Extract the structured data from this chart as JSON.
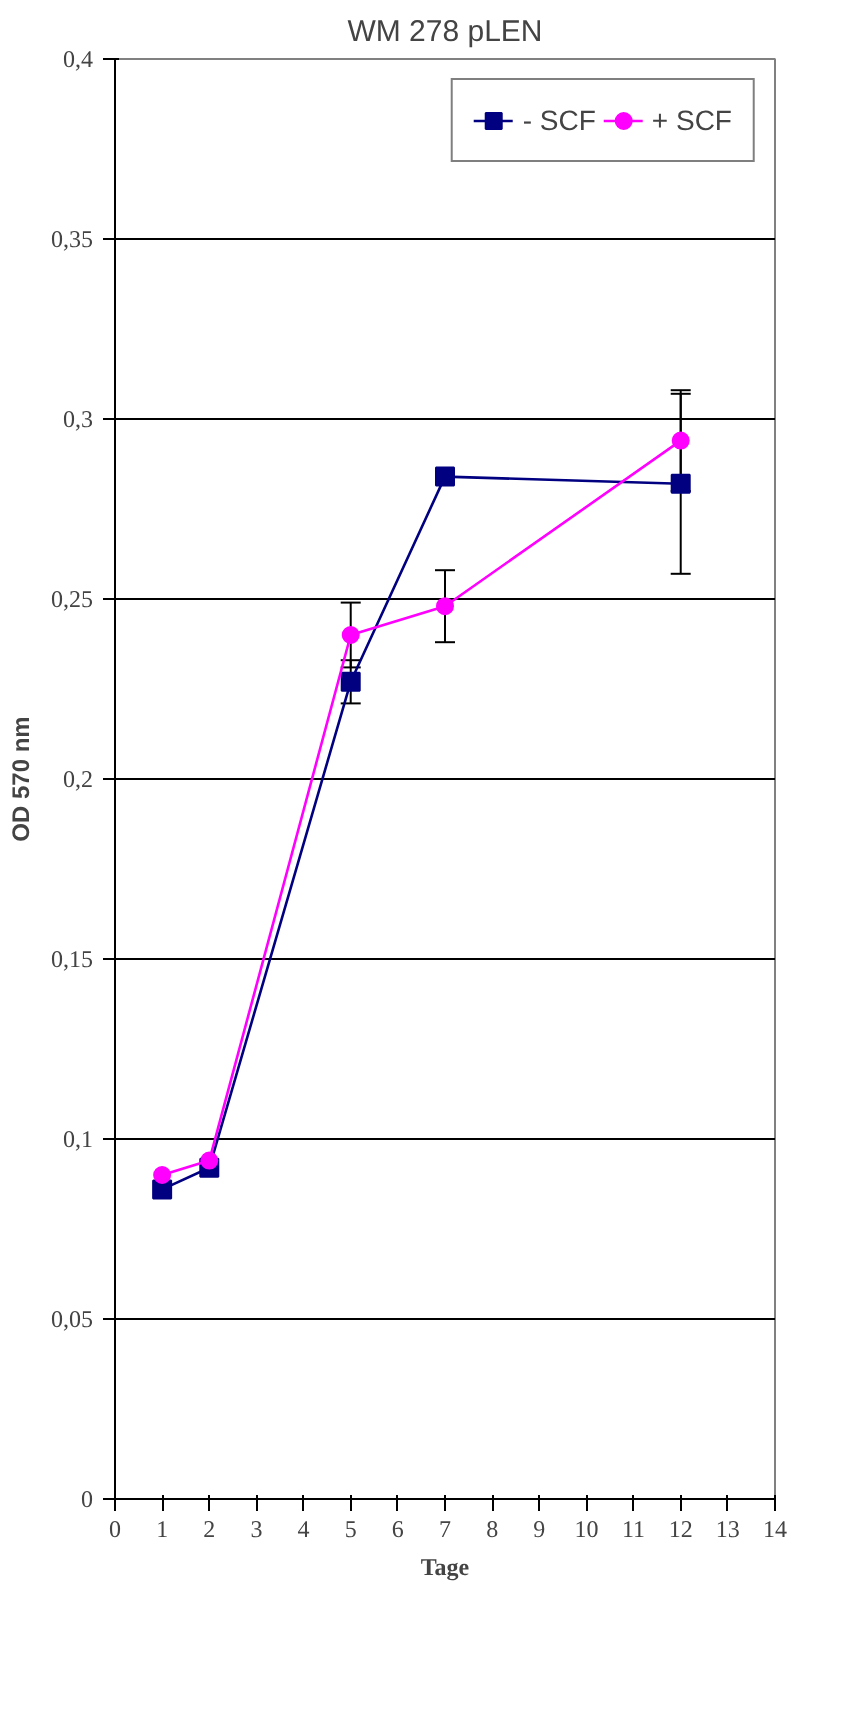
{
  "chart_data": {
    "type": "line",
    "title": "WM 278 pLEN",
    "xlabel": "Tage",
    "ylabel": "OD 570 nm",
    "x": [
      1,
      2,
      5,
      7,
      12
    ],
    "xlim": [
      0,
      14
    ],
    "xticks": [
      0,
      1,
      2,
      3,
      4,
      5,
      6,
      7,
      8,
      9,
      10,
      11,
      12,
      13,
      14
    ],
    "ylim": [
      0,
      0.4
    ],
    "yticks": [
      0,
      {
        "value": 0.05,
        "label": "0,05"
      },
      {
        "value": 0.1,
        "label": "0,1"
      },
      {
        "value": 0.15,
        "label": "0,15"
      },
      {
        "value": 0.2,
        "label": "0,2"
      },
      {
        "value": 0.25,
        "label": "0,25"
      },
      {
        "value": 0.3,
        "label": "0,3"
      },
      {
        "value": 0.35,
        "label": "0,35"
      },
      {
        "value": 0.4,
        "label": "0,4"
      }
    ],
    "grid": "y",
    "legend": "top right",
    "series": [
      {
        "name": "- SCF",
        "color": "#000080",
        "marker": "square",
        "values": [
          0.086,
          0.092,
          0.227,
          0.284,
          0.282
        ],
        "errors": [
          null,
          null,
          0.006,
          null,
          0.025
        ]
      },
      {
        "name": "+ SCF",
        "color": "#ff00ff",
        "marker": "circle",
        "values": [
          0.09,
          0.094,
          0.24,
          0.248,
          0.294
        ],
        "errors": [
          null,
          null,
          0.009,
          0.01,
          0.014
        ]
      }
    ]
  }
}
